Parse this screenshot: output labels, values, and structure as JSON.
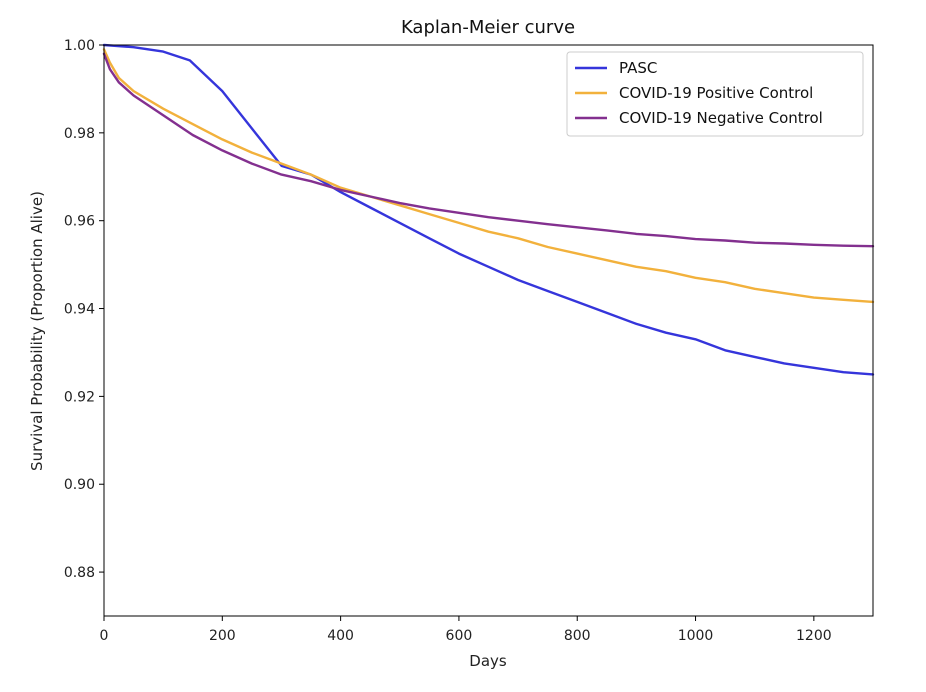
{
  "chart_data": {
    "type": "line",
    "title": "Kaplan-Meier curve",
    "xlabel": "Days",
    "ylabel": "Survival Probability (Proportion Alive)",
    "xlim": [
      0,
      1300
    ],
    "ylim": [
      0.87,
      1.0
    ],
    "xticks": [
      0,
      200,
      400,
      600,
      800,
      1000,
      1200
    ],
    "xtick_labels": [
      "0",
      "200",
      "400",
      "600",
      "800",
      "1000",
      "1200"
    ],
    "yticks": [
      0.88,
      0.9,
      0.92,
      0.94,
      0.96,
      0.98,
      1.0
    ],
    "ytick_labels": [
      "0.88",
      "0.90",
      "0.92",
      "0.94",
      "0.96",
      "0.98",
      "1.00"
    ],
    "grid": false,
    "legend_position": "top-right",
    "series": [
      {
        "name": "PASC",
        "color": "#3535db",
        "x": [
          0,
          50,
          100,
          145,
          200,
          250,
          300,
          350,
          400,
          450,
          500,
          550,
          600,
          650,
          700,
          750,
          800,
          850,
          900,
          950,
          1000,
          1050,
          1100,
          1150,
          1200,
          1250,
          1300
        ],
        "y": [
          1.0,
          0.9995,
          0.9985,
          0.9965,
          0.9895,
          0.981,
          0.9725,
          0.9705,
          0.9665,
          0.963,
          0.9595,
          0.956,
          0.9525,
          0.9495,
          0.9465,
          0.944,
          0.9415,
          0.939,
          0.9365,
          0.9345,
          0.933,
          0.9305,
          0.929,
          0.9275,
          0.9265,
          0.9255,
          0.925
        ]
      },
      {
        "name": "COVID-19 Positive Control",
        "color": "#f2b13c",
        "x": [
          0,
          10,
          25,
          50,
          100,
          150,
          200,
          250,
          300,
          350,
          400,
          450,
          500,
          550,
          600,
          650,
          700,
          750,
          800,
          850,
          900,
          950,
          1000,
          1050,
          1100,
          1150,
          1200,
          1250,
          1300
        ],
        "y": [
          0.999,
          0.996,
          0.9925,
          0.9895,
          0.9855,
          0.982,
          0.9785,
          0.9755,
          0.973,
          0.9705,
          0.9675,
          0.9655,
          0.9635,
          0.9615,
          0.9595,
          0.9575,
          0.956,
          0.954,
          0.9525,
          0.951,
          0.9495,
          0.9485,
          0.947,
          0.946,
          0.9445,
          0.9435,
          0.9425,
          0.942,
          0.9415
        ]
      },
      {
        "name": "COVID-19 Negative Control",
        "color": "#83308f",
        "x": [
          0,
          10,
          25,
          50,
          100,
          150,
          200,
          250,
          300,
          350,
          400,
          450,
          500,
          550,
          600,
          650,
          700,
          750,
          800,
          850,
          900,
          950,
          1000,
          1050,
          1100,
          1150,
          1200,
          1250,
          1300
        ],
        "y": [
          0.998,
          0.9945,
          0.9915,
          0.9885,
          0.984,
          0.9795,
          0.976,
          0.973,
          0.9705,
          0.969,
          0.967,
          0.9655,
          0.964,
          0.9628,
          0.9618,
          0.9608,
          0.96,
          0.9592,
          0.9585,
          0.9578,
          0.957,
          0.9565,
          0.9558,
          0.9555,
          0.955,
          0.9548,
          0.9545,
          0.9543,
          0.9542
        ]
      }
    ]
  }
}
